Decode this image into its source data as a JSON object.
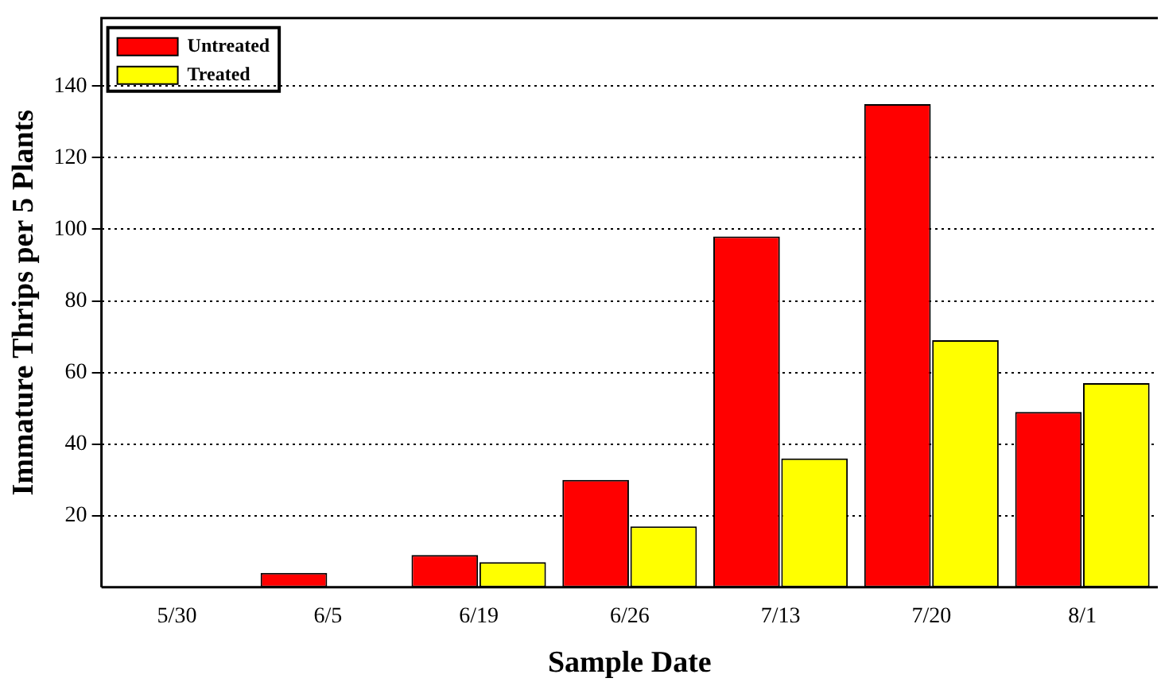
{
  "chart_data": {
    "type": "bar",
    "xlabel": "Sample Date",
    "ylabel": "Immature Thrips per 5 Plants",
    "categories": [
      "5/30",
      "6/5",
      "6/19",
      "6/26",
      "7/13",
      "7/20",
      "8/1"
    ],
    "series": [
      {
        "name": "Untreated",
        "color": "#ff0000",
        "values": [
          0,
          4,
          9,
          30,
          98,
          135,
          49
        ]
      },
      {
        "name": "Treated",
        "color": "#ffff00",
        "values": [
          0,
          0,
          7,
          17,
          36,
          69,
          57
        ]
      }
    ],
    "ylim": [
      0,
      159
    ],
    "yticks": [
      20,
      40,
      60,
      80,
      100,
      120,
      140
    ],
    "grid": "y",
    "legend": "top left"
  }
}
